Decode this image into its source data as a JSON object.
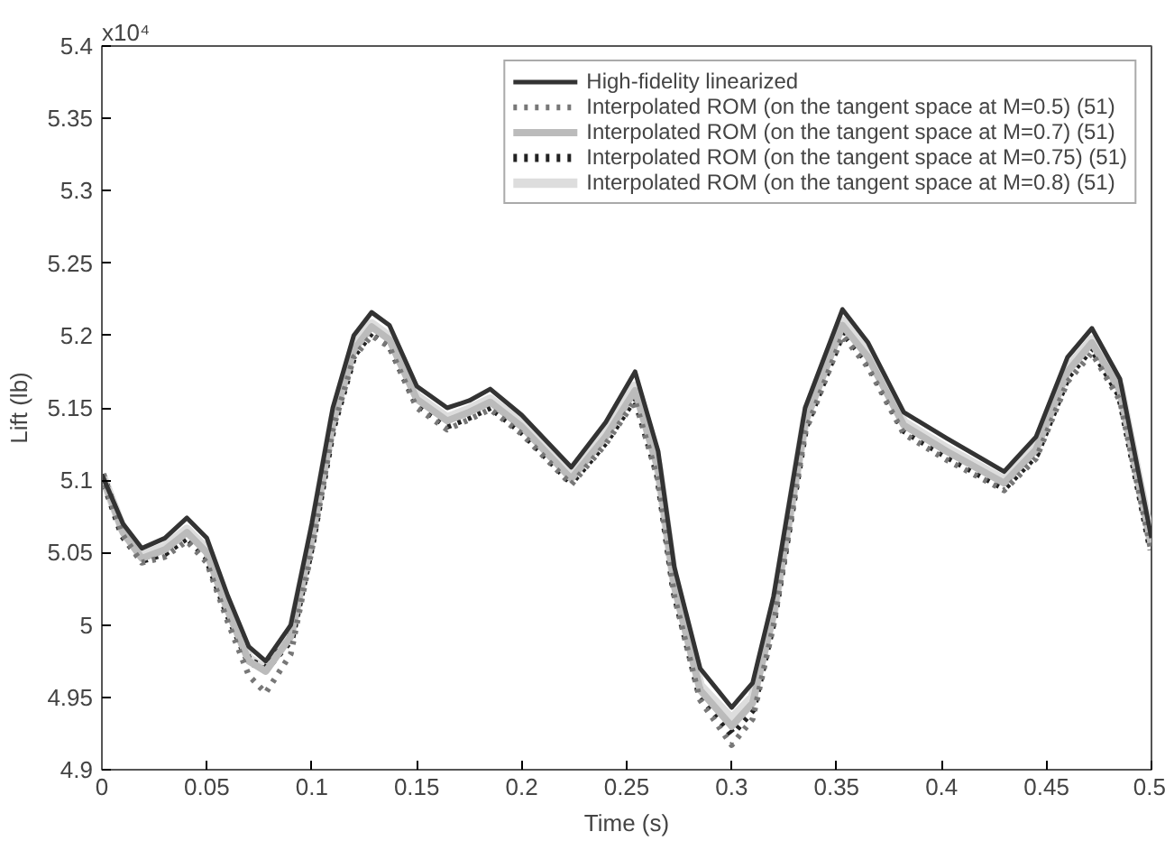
{
  "chart_data": {
    "type": "line",
    "xlabel": "Time (s)",
    "ylabel": "Lift (lb)",
    "annotations": [
      "x10⁴"
    ],
    "x": [
      0,
      0.01,
      0.019,
      0.03,
      0.0405,
      0.05,
      0.06,
      0.07,
      0.078,
      0.09,
      0.1,
      0.11,
      0.12,
      0.1285,
      0.137,
      0.15,
      0.1645,
      0.175,
      0.185,
      0.2,
      0.2236,
      0.24,
      0.254,
      0.265,
      0.2727,
      0.285,
      0.3,
      0.31,
      0.32,
      0.335,
      0.3528,
      0.365,
      0.382,
      0.4024,
      0.4298,
      0.445,
      0.46,
      0.4716,
      0.485,
      0.5
    ],
    "xlim": [
      0,
      0.5
    ],
    "xticks": [
      0,
      0.05,
      0.1,
      0.15,
      0.2,
      0.25,
      0.3,
      0.35,
      0.4,
      0.45,
      0.5
    ],
    "ylim": [
      4.9,
      5.4
    ],
    "yticks": [
      4.9,
      4.95,
      5,
      5.05,
      5.1,
      5.15,
      5.2,
      5.25,
      5.3,
      5.35,
      5.4
    ],
    "grid": false,
    "legend": "top right",
    "marker": "none",
    "series": [
      {
        "name": "High-fidelity linearized",
        "color": "#333333",
        "line_style": "solid",
        "values": [
          5.104,
          5.07,
          5.053,
          5.06,
          5.074,
          5.06,
          5.02,
          4.985,
          4.975,
          5.0,
          5.07,
          5.15,
          5.2,
          5.216,
          5.207,
          5.165,
          5.15,
          5.155,
          5.163,
          5.145,
          5.109,
          5.14,
          5.175,
          5.12,
          5.04,
          4.97,
          4.943,
          4.96,
          5.02,
          5.15,
          5.218,
          5.195,
          5.147,
          5.129,
          5.106,
          5.13,
          5.185,
          5.205,
          5.17,
          5.06
        ]
      },
      {
        "name": "Interpolated ROM (on the tangent space at M=0.5) (51)",
        "color": "#777777",
        "line_style": "dotted",
        "values": [
          5.104,
          5.062,
          5.043,
          5.047,
          5.058,
          5.043,
          5.002,
          4.965,
          4.953,
          4.98,
          5.052,
          5.135,
          5.185,
          5.2,
          5.192,
          5.15,
          5.135,
          5.142,
          5.149,
          5.132,
          5.097,
          5.125,
          5.155,
          5.1,
          5.02,
          4.948,
          4.917,
          4.935,
          5.0,
          5.133,
          5.2,
          5.178,
          5.132,
          5.114,
          5.093,
          5.115,
          5.168,
          5.188,
          5.155,
          5.05
        ]
      },
      {
        "name": "Interpolated ROM (on the tangent space at M=0.7) (51)",
        "color": "#bbbbbb",
        "line_style": "solid",
        "values": [
          5.104,
          5.064,
          5.046,
          5.052,
          5.064,
          5.05,
          5.01,
          4.975,
          4.968,
          4.992,
          5.06,
          5.14,
          5.19,
          5.206,
          5.197,
          5.156,
          5.141,
          5.147,
          5.154,
          5.137,
          5.101,
          5.13,
          5.162,
          5.108,
          5.027,
          4.955,
          4.93,
          4.946,
          5.008,
          5.14,
          5.207,
          5.185,
          5.138,
          5.12,
          5.098,
          5.121,
          5.175,
          5.195,
          5.162,
          5.055
        ]
      },
      {
        "name": "Interpolated ROM (on the tangent space at M=0.75) (51)",
        "color": "#222222",
        "line_style": "dotted",
        "values": [
          5.104,
          5.062,
          5.045,
          5.05,
          5.061,
          5.047,
          5.008,
          4.975,
          4.97,
          4.99,
          5.057,
          5.137,
          5.187,
          5.203,
          5.194,
          5.153,
          5.138,
          5.144,
          5.151,
          5.134,
          5.099,
          5.127,
          5.158,
          5.104,
          5.024,
          4.952,
          4.925,
          4.942,
          5.005,
          5.137,
          5.203,
          5.182,
          5.135,
          5.117,
          5.095,
          5.118,
          5.172,
          5.192,
          5.159,
          5.052
        ]
      },
      {
        "name": "Interpolated ROM (on the tangent space at M=0.8) (51)",
        "color": "#dddddd",
        "line_style": "solid",
        "values": [
          5.104,
          5.066,
          5.048,
          5.054,
          5.066,
          5.052,
          5.012,
          4.977,
          4.969,
          4.994,
          5.062,
          5.142,
          5.192,
          5.208,
          5.199,
          5.158,
          5.143,
          5.149,
          5.156,
          5.139,
          5.103,
          5.132,
          5.165,
          5.11,
          5.03,
          4.958,
          4.935,
          4.95,
          5.01,
          5.142,
          5.21,
          5.187,
          5.14,
          5.122,
          5.1,
          5.123,
          5.177,
          5.197,
          5.164,
          5.057
        ]
      }
    ]
  }
}
